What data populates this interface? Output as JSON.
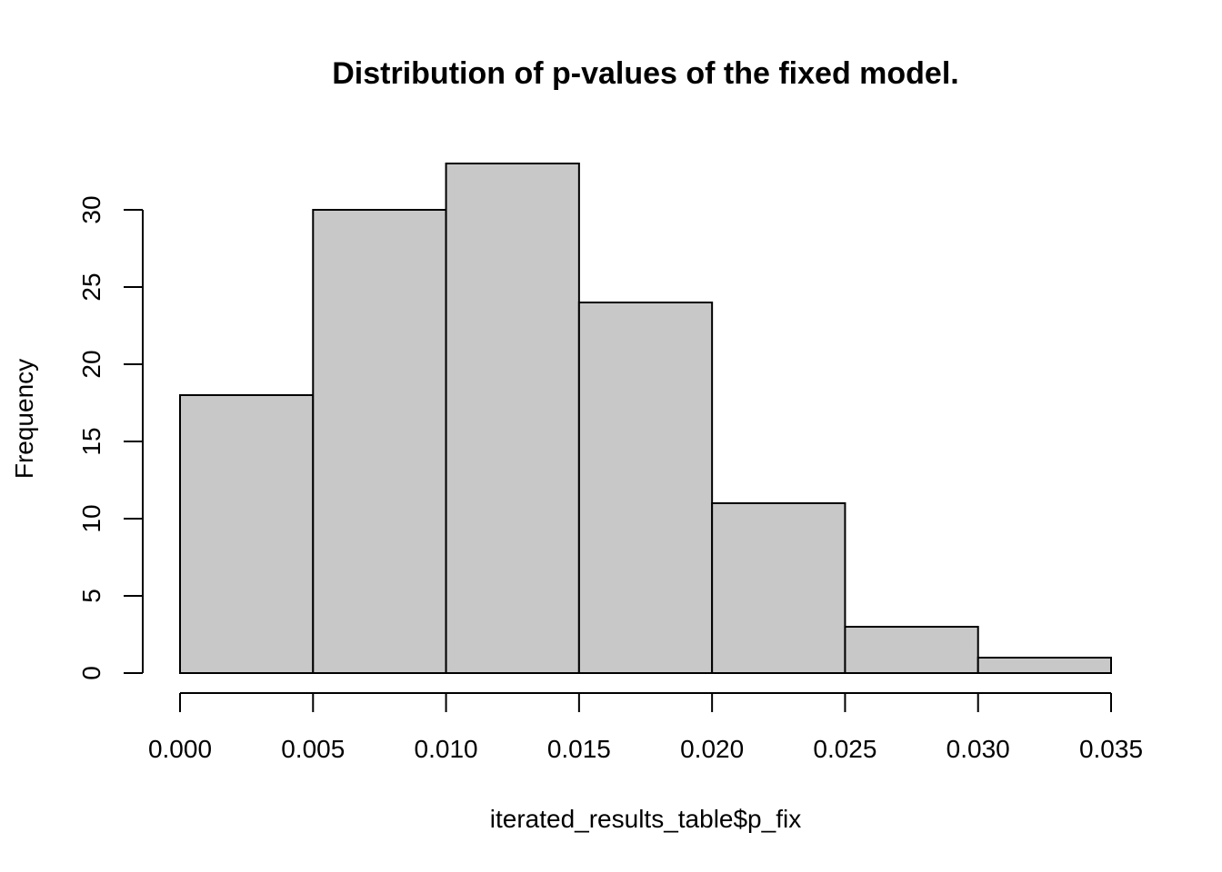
{
  "chart_data": {
    "type": "bar",
    "histogram": true,
    "title": "Distribution of p-values of the fixed model.",
    "xlabel": "iterated_results_table$p_fix",
    "ylabel": "Frequency",
    "bins": [
      {
        "x0": 0.0,
        "x1": 0.005,
        "count": 18
      },
      {
        "x0": 0.005,
        "x1": 0.01,
        "count": 30
      },
      {
        "x0": 0.01,
        "x1": 0.015,
        "count": 33
      },
      {
        "x0": 0.015,
        "x1": 0.02,
        "count": 24
      },
      {
        "x0": 0.02,
        "x1": 0.025,
        "count": 11
      },
      {
        "x0": 0.025,
        "x1": 0.03,
        "count": 3
      },
      {
        "x0": 0.03,
        "x1": 0.035,
        "count": 1
      }
    ],
    "xlim": [
      0,
      0.035
    ],
    "ylim": [
      0,
      33
    ],
    "x_ticks": [
      "0.000",
      "0.005",
      "0.010",
      "0.015",
      "0.020",
      "0.025",
      "0.030",
      "0.035"
    ],
    "y_ticks": [
      "0",
      "5",
      "10",
      "15",
      "20",
      "25",
      "30"
    ],
    "bar_color": "#c8c8c8",
    "edge_color": "#000000",
    "grid": false,
    "legend": "none"
  }
}
